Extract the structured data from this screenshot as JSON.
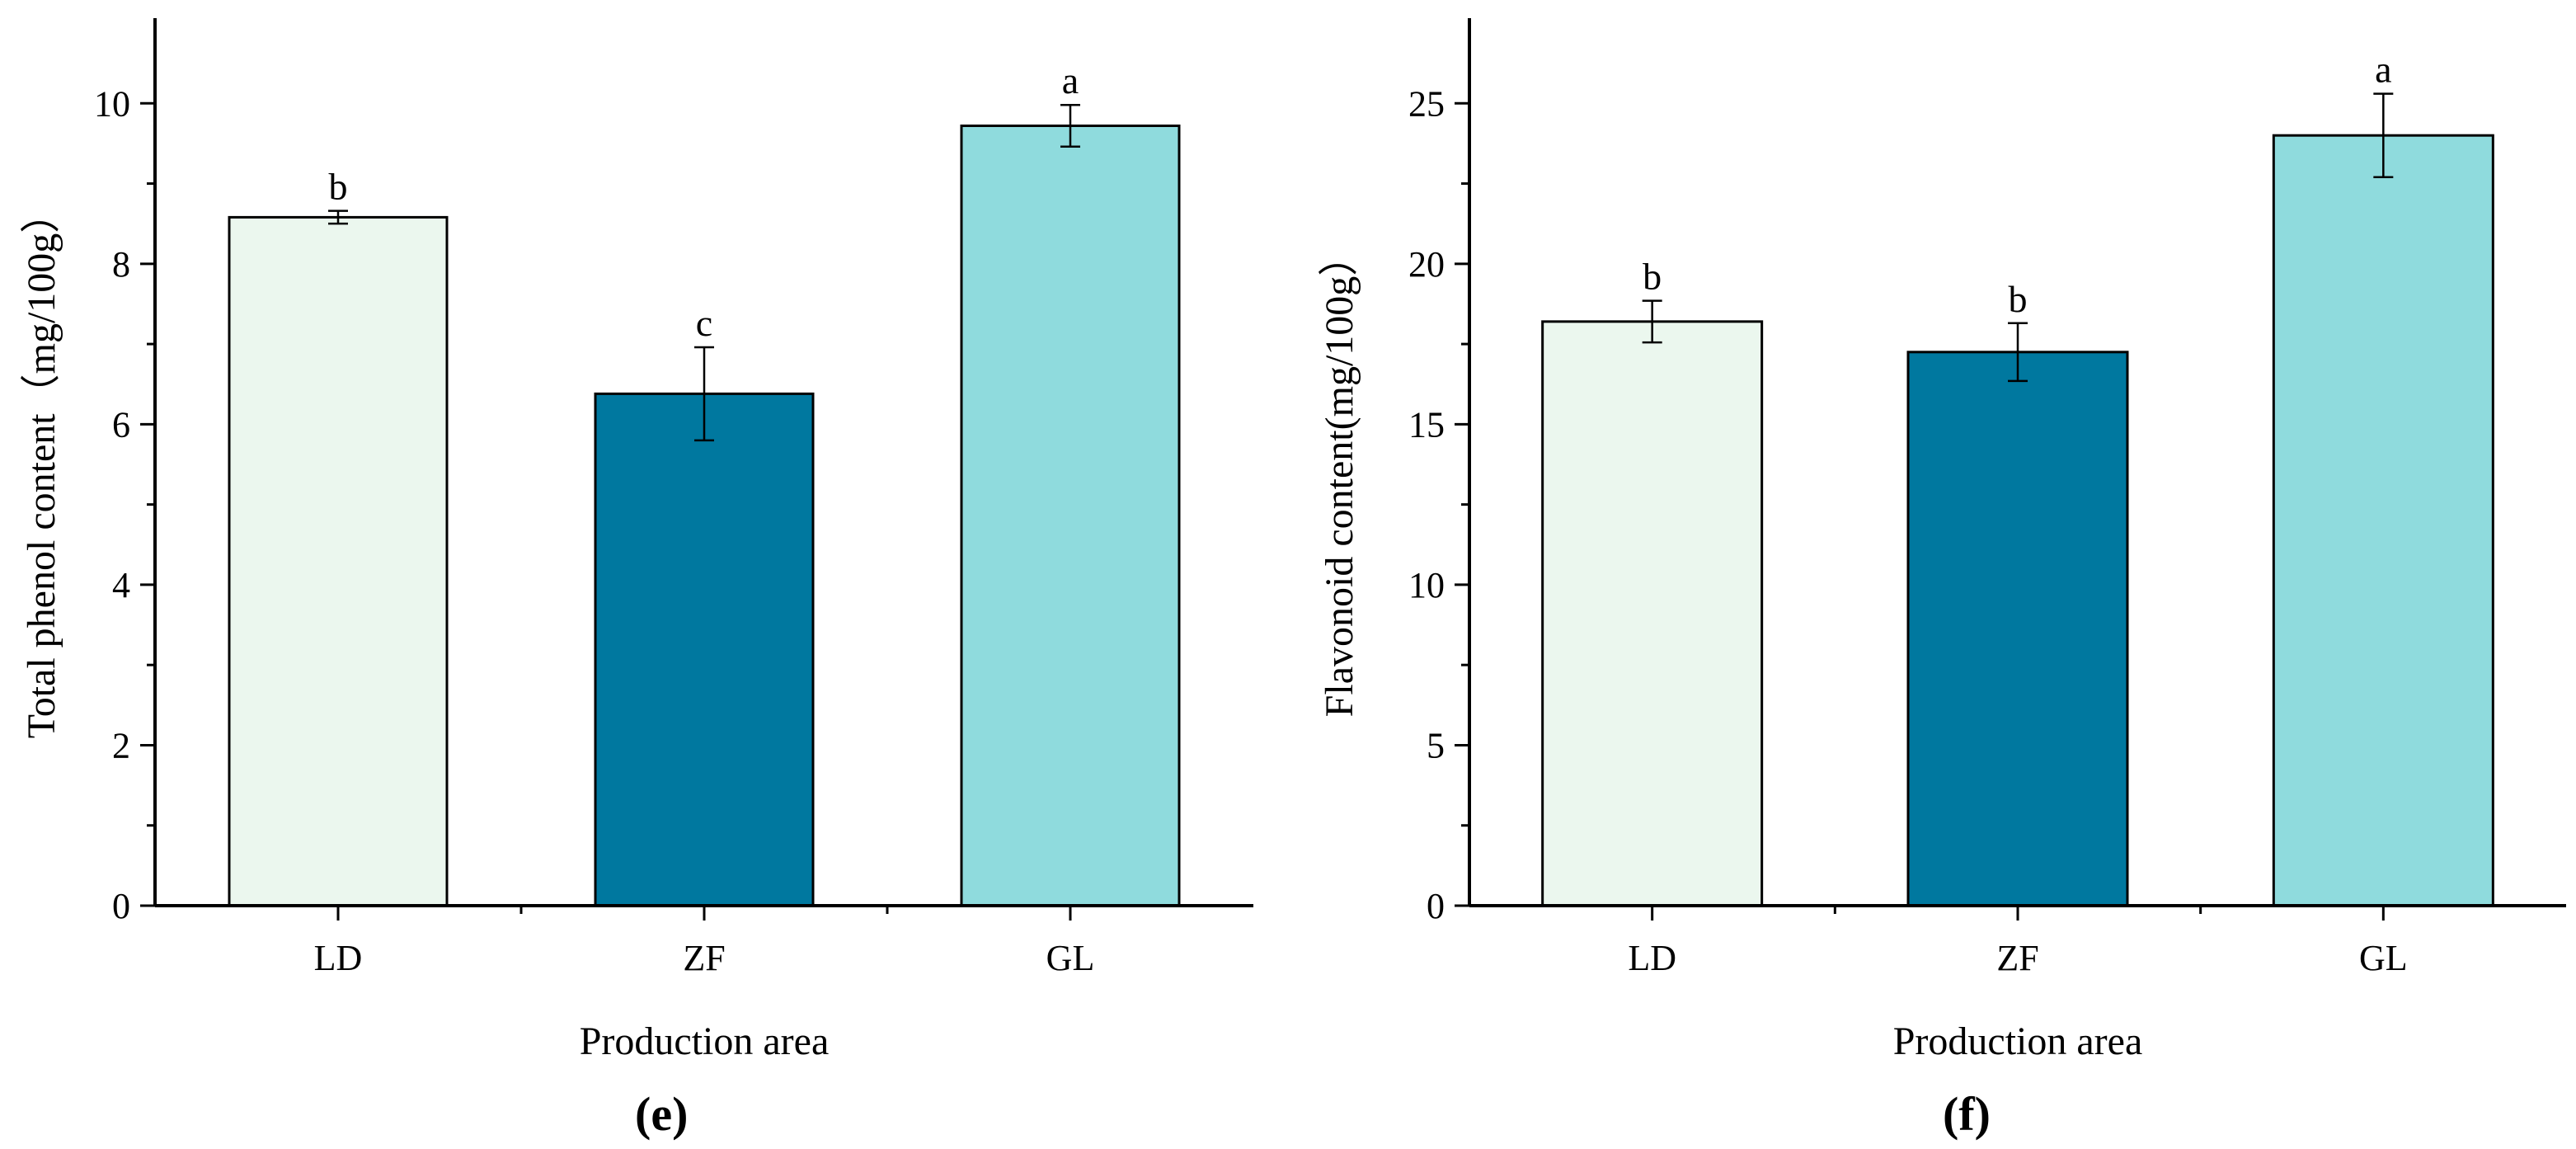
{
  "chart_data": [
    {
      "type": "bar",
      "panel_label": "(e)",
      "panel_letter": "e",
      "title": "",
      "xlabel": "Production area",
      "ylabel": "Total phenol content（mg/100g）",
      "categories": [
        "LD",
        "ZF",
        "GL"
      ],
      "values": [
        8.58,
        6.38,
        9.72
      ],
      "errors": [
        0.08,
        0.58,
        0.26
      ],
      "significance": [
        "b",
        "c",
        "a"
      ],
      "colors": [
        "#ebf7ee",
        "#00789f",
        "#8fdbdd"
      ],
      "ylim": [
        0,
        11
      ],
      "yticks": [
        0,
        2,
        4,
        6,
        8,
        10
      ],
      "ytick_labels": [
        "0",
        "2",
        "4",
        "6",
        "8",
        "10"
      ],
      "grid": false,
      "legend": "none"
    },
    {
      "type": "bar",
      "panel_label": "(f)",
      "panel_letter": "f",
      "title": "",
      "xlabel": "Production area",
      "ylabel": "Flavonoid content(mg/100g）",
      "categories": [
        "LD",
        "ZF",
        "GL"
      ],
      "values": [
        18.2,
        17.25,
        24.0
      ],
      "errors": [
        0.65,
        0.9,
        1.3
      ],
      "significance": [
        "b",
        "b",
        "a"
      ],
      "colors": [
        "#ebf7ee",
        "#00789f",
        "#8fdbdd"
      ],
      "ylim": [
        0,
        27.5
      ],
      "yticks": [
        0,
        5,
        10,
        15,
        20,
        25
      ],
      "ytick_labels": [
        "0",
        "5",
        "10",
        "15",
        "20",
        "25"
      ],
      "grid": false,
      "legend": "none"
    }
  ]
}
